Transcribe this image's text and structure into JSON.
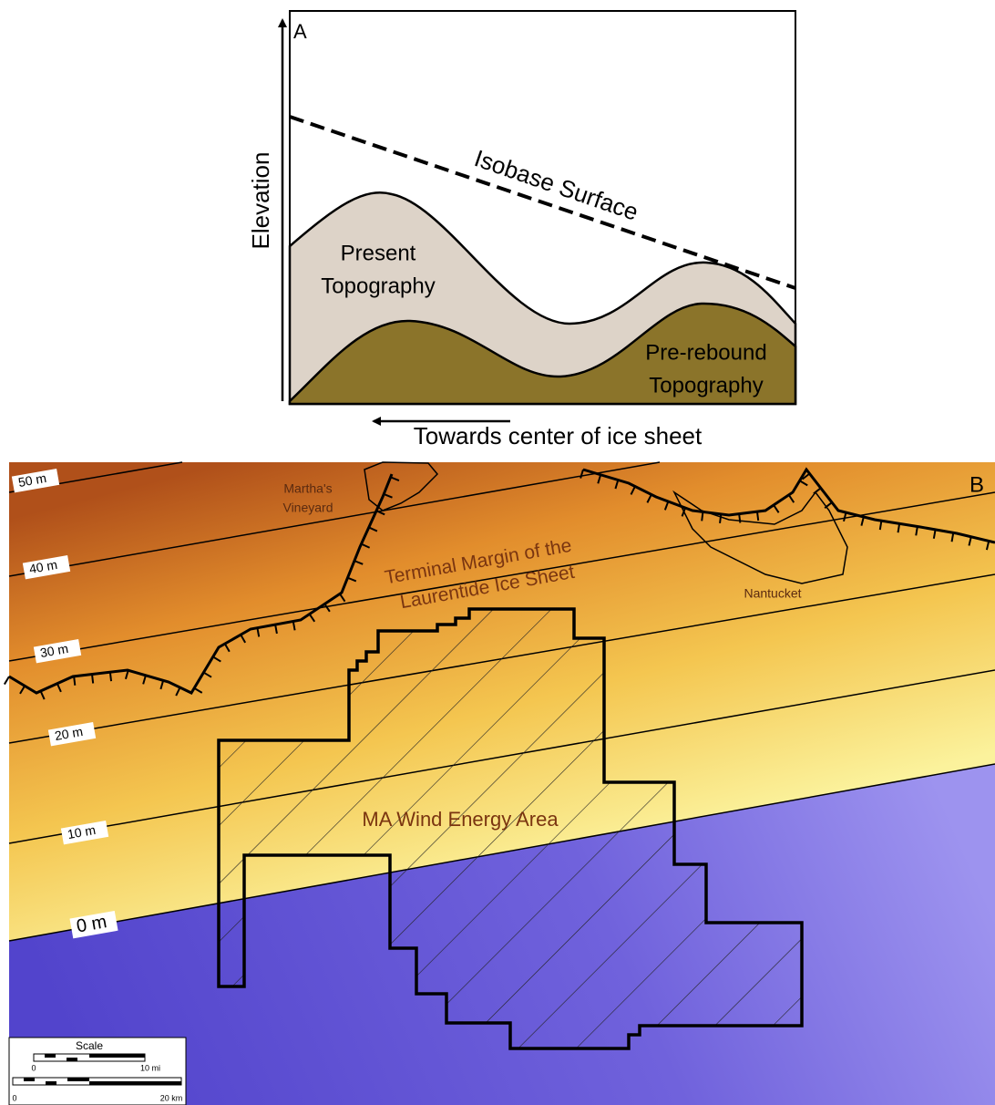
{
  "panel_a": {
    "label": "A",
    "y_axis_label": "Elevation",
    "x_axis_label": "Towards center of ice sheet",
    "isobase_label": "Isobase Surface",
    "present_topography": [
      "Present",
      "Topography"
    ],
    "pre_rebound_topography": [
      "Pre-rebound",
      "Topography"
    ]
  },
  "panel_b": {
    "label": "B",
    "contour_labels": [
      "50 m",
      "40 m",
      "30 m",
      "20 m",
      "10 m",
      "0 m"
    ],
    "marthas_vineyard": [
      "Martha's",
      "Vineyard"
    ],
    "terminal_margin": [
      "Terminal Margin of the",
      "Laurentide Ice Sheet"
    ],
    "nantucket": "Nantucket",
    "wind_energy_area": "MA Wind Energy Area",
    "scale": {
      "title": "Scale",
      "mi_ticks": [
        "0",
        "10 mi"
      ],
      "km_ticks": [
        "0",
        "20 km"
      ]
    }
  }
}
